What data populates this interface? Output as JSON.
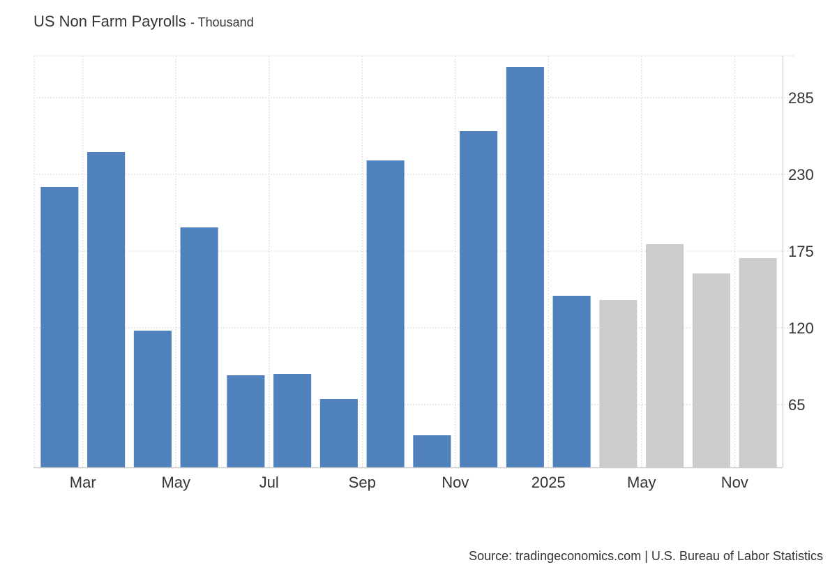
{
  "header": {
    "title": "US Non Farm Payrolls",
    "unit": "- Thousand"
  },
  "footer": {
    "source": "Source: tradingeconomics.com | U.S. Bureau of Labor Statistics"
  },
  "colors": {
    "actual": "#4f81bd",
    "forecast": "#cccccc",
    "grid": "#d9d9d9",
    "axis": "#cccccc"
  },
  "chart_data": {
    "type": "bar",
    "title": "US Non Farm Payrolls",
    "subtitle": "- Thousand",
    "ylim": [
      20,
      315
    ],
    "grid": true,
    "y_ticks": [
      65,
      120,
      175,
      230,
      285
    ],
    "x_tick_labels": [
      {
        "label": "Mar",
        "index": 1
      },
      {
        "label": "May",
        "index": 3
      },
      {
        "label": "Jul",
        "index": 5
      },
      {
        "label": "Sep",
        "index": 7
      },
      {
        "label": "Nov",
        "index": 9
      },
      {
        "label": "2025",
        "index": 11
      },
      {
        "label": "May",
        "index": 13
      },
      {
        "label": "Nov",
        "index": 15
      }
    ],
    "series": [
      {
        "type": "actual",
        "values": [
          221,
          246,
          118,
          192,
          86,
          87,
          69,
          240,
          43,
          261,
          307,
          143
        ]
      },
      {
        "type": "forecast",
        "values": [
          140,
          180,
          159,
          170
        ]
      }
    ]
  }
}
